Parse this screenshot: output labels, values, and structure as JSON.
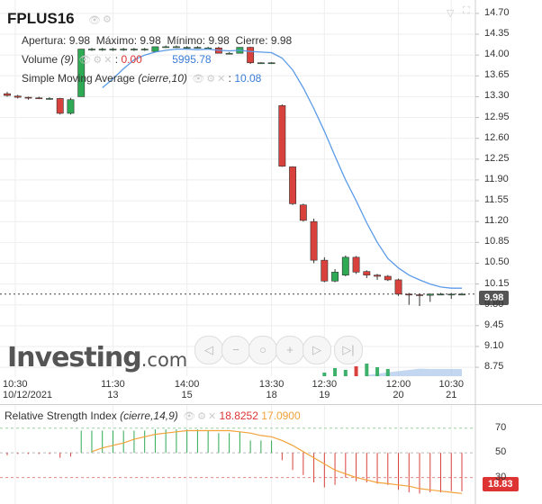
{
  "symbol": "FPLUS16",
  "ohlc": {
    "open_label": "Apertura:",
    "open": "9.98",
    "high_label": "Máximo:",
    "high": "9.98",
    "low_label": "Mínimo:",
    "low": "9.98",
    "close_label": "Cierre:",
    "close": "9.98"
  },
  "volume_legend": {
    "label": "Volume",
    "param": "(9)",
    "sep": ":",
    "value1": "0.00",
    "value2": "5995.78"
  },
  "sma_legend": {
    "label": "Simple Moving Average",
    "param": "(cierre,10)",
    "sep": ":",
    "value": "10.08"
  },
  "rsi_legend": {
    "label": "Relative Strength Index",
    "param": "(cierre,14,9)",
    "value1": "18.8252",
    "value2": "17.0900"
  },
  "last_price_tag": "9.98",
  "rsi_value_tag": "18.83",
  "logo": {
    "main": "Investing",
    "suffix": ".com"
  },
  "colors": {
    "up": "#2eaa55",
    "down": "#d9413c",
    "sma": "#5b9be8",
    "rsi_signal": "#f2a33a",
    "rsi_bull": "#2eaa55",
    "rsi_bear": "#d9413c",
    "volume": "#9bbce8"
  },
  "icons": [
    "eye-icon",
    "gear-icon",
    "close-icon",
    "collapse-icon",
    "maximize-icon"
  ],
  "nav_icons": [
    "scroll-left-icon",
    "zoom-out-icon",
    "reset-zoom-icon",
    "zoom-in-icon",
    "scroll-right-icon",
    "go-to-latest-icon"
  ],
  "chart_data": [
    {
      "type": "candlestick",
      "x_ticks": [
        [
          "10:30",
          "10/12/2021"
        ],
        [
          "11:30",
          "13"
        ],
        [
          "14:00",
          "15"
        ],
        [
          "13:30",
          "18"
        ],
        [
          "12:30",
          "19"
        ],
        [
          "12:00",
          "20"
        ],
        [
          "10:30",
          "21"
        ]
      ],
      "y_ticks": [
        "14.70",
        "14.35",
        "14.00",
        "13.65",
        "13.30",
        "12.95",
        "12.60",
        "12.25",
        "11.90",
        "11.55",
        "11.20",
        "10.85",
        "10.50",
        "10.15",
        "9.80",
        "9.45",
        "9.10",
        "8.75"
      ],
      "ylim": [
        8.6,
        14.85
      ],
      "candles": [
        {
          "o": 13.35,
          "h": 13.38,
          "l": 13.3,
          "c": 13.32
        },
        {
          "o": 13.31,
          "h": 13.33,
          "l": 13.27,
          "c": 13.29
        },
        {
          "o": 13.29,
          "h": 13.3,
          "l": 13.25,
          "c": 13.28
        },
        {
          "o": 13.28,
          "h": 13.3,
          "l": 13.26,
          "c": 13.27
        },
        {
          "o": 13.27,
          "h": 13.29,
          "l": 13.25,
          "c": 13.27
        },
        {
          "o": 13.27,
          "h": 13.28,
          "l": 13.0,
          "c": 13.02
        },
        {
          "o": 13.02,
          "h": 13.28,
          "l": 13.0,
          "c": 13.25
        },
        {
          "o": 13.3,
          "h": 14.1,
          "l": 13.3,
          "c": 14.1
        },
        {
          "o": 14.1,
          "h": 14.12,
          "l": 14.07,
          "c": 14.1
        },
        {
          "o": 14.1,
          "h": 14.12,
          "l": 14.07,
          "c": 14.1
        },
        {
          "o": 14.1,
          "h": 14.12,
          "l": 14.07,
          "c": 14.1
        },
        {
          "o": 14.1,
          "h": 14.12,
          "l": 14.07,
          "c": 14.1
        },
        {
          "o": 14.1,
          "h": 14.12,
          "l": 14.07,
          "c": 14.1
        },
        {
          "o": 14.1,
          "h": 14.12,
          "l": 14.07,
          "c": 14.1
        },
        {
          "o": 14.06,
          "h": 14.14,
          "l": 14.06,
          "c": 14.14
        },
        {
          "o": 14.14,
          "h": 14.16,
          "l": 14.12,
          "c": 14.14
        },
        {
          "o": 14.14,
          "h": 14.16,
          "l": 14.12,
          "c": 14.14
        },
        {
          "o": 14.13,
          "h": 14.15,
          "l": 14.11,
          "c": 14.13
        },
        {
          "o": 14.13,
          "h": 14.15,
          "l": 14.11,
          "c": 14.13
        },
        {
          "o": 14.12,
          "h": 14.14,
          "l": 14.1,
          "c": 14.12
        },
        {
          "o": 14.12,
          "h": 14.14,
          "l": 14.03,
          "c": 14.03
        },
        {
          "o": 14.03,
          "h": 14.05,
          "l": 14.01,
          "c": 14.03
        },
        {
          "o": 14.03,
          "h": 14.13,
          "l": 14.03,
          "c": 14.13
        },
        {
          "o": 14.13,
          "h": 14.14,
          "l": 13.85,
          "c": 13.87
        },
        {
          "o": 13.87,
          "h": 13.88,
          "l": 13.85,
          "c": 13.87
        },
        {
          "o": 13.87,
          "h": 13.88,
          "l": 13.85,
          "c": 13.87
        },
        {
          "o": 13.15,
          "h": 13.17,
          "l": 12.12,
          "c": 12.13
        },
        {
          "o": 12.12,
          "h": 12.13,
          "l": 11.48,
          "c": 11.5
        },
        {
          "o": 11.48,
          "h": 11.5,
          "l": 11.2,
          "c": 11.22
        },
        {
          "o": 11.2,
          "h": 11.25,
          "l": 10.5,
          "c": 10.55
        },
        {
          "o": 10.55,
          "h": 10.6,
          "l": 10.18,
          "c": 10.2
        },
        {
          "o": 10.2,
          "h": 10.4,
          "l": 10.18,
          "c": 10.35
        },
        {
          "o": 10.3,
          "h": 10.63,
          "l": 10.28,
          "c": 10.6
        },
        {
          "o": 10.6,
          "h": 10.62,
          "l": 10.32,
          "c": 10.35
        },
        {
          "o": 10.36,
          "h": 10.38,
          "l": 10.25,
          "c": 10.3
        },
        {
          "o": 10.3,
          "h": 10.32,
          "l": 10.22,
          "c": 10.28
        },
        {
          "o": 10.28,
          "h": 10.3,
          "l": 10.2,
          "c": 10.22
        },
        {
          "o": 10.22,
          "h": 10.24,
          "l": 9.95,
          "c": 9.98
        },
        {
          "o": 9.98,
          "h": 10.0,
          "l": 9.8,
          "c": 9.97
        },
        {
          "o": 9.97,
          "h": 9.99,
          "l": 9.78,
          "c": 9.96
        },
        {
          "o": 9.96,
          "h": 9.99,
          "l": 9.85,
          "c": 9.98
        },
        {
          "o": 9.98,
          "h": 10.0,
          "l": 9.96,
          "c": 9.98
        },
        {
          "o": 9.98,
          "h": 10.0,
          "l": 9.9,
          "c": 9.98
        },
        {
          "o": 9.98,
          "h": 10.0,
          "l": 9.96,
          "c": 9.98
        }
      ],
      "sma": [
        null,
        null,
        null,
        null,
        null,
        null,
        null,
        null,
        null,
        13.45,
        13.6,
        13.77,
        13.92,
        14.0,
        14.05,
        14.08,
        14.1,
        14.1,
        14.09,
        14.1,
        14.08,
        14.07,
        14.08,
        14.06,
        14.05,
        14.04,
        13.95,
        13.75,
        13.45,
        13.1,
        12.72,
        12.3,
        11.9,
        11.55,
        11.18,
        10.85,
        10.58,
        10.42,
        10.3,
        10.22,
        10.15,
        10.1,
        10.08,
        10.08
      ],
      "volume": [
        0,
        0,
        0,
        0,
        0,
        0,
        0,
        0,
        0,
        0,
        0,
        0,
        0,
        0,
        0,
        0,
        0,
        0,
        0,
        0,
        0,
        0,
        0,
        0,
        0,
        0,
        0,
        0,
        0,
        0,
        0,
        0,
        0,
        0,
        0,
        0,
        0,
        0,
        0,
        0,
        0,
        0,
        0,
        0
      ]
    },
    {
      "type": "line",
      "title": "Relative Strength Index",
      "y_ticks": [
        "70",
        "50",
        "30"
      ],
      "ylim": [
        10,
        80
      ],
      "levels": [
        70,
        50,
        30
      ],
      "rsi": [
        48,
        49,
        49,
        49,
        49,
        46,
        47,
        68,
        68,
        68,
        68,
        68,
        68,
        68,
        69,
        69,
        69,
        69,
        69,
        68,
        66,
        66,
        67,
        60,
        60,
        60,
        44,
        36,
        32,
        26,
        22,
        24,
        30,
        27,
        26,
        25,
        24,
        20,
        18,
        17,
        18,
        18,
        19,
        18.83
      ],
      "signal": [
        null,
        null,
        null,
        null,
        null,
        null,
        null,
        null,
        51,
        54,
        56,
        58,
        61,
        63,
        65,
        66,
        67,
        68,
        68,
        68,
        68,
        68,
        67,
        66,
        64,
        63,
        60,
        56,
        51,
        46,
        41,
        36,
        33,
        30,
        28,
        26,
        25,
        24,
        23,
        21,
        20,
        19,
        18,
        17.09
      ]
    }
  ]
}
